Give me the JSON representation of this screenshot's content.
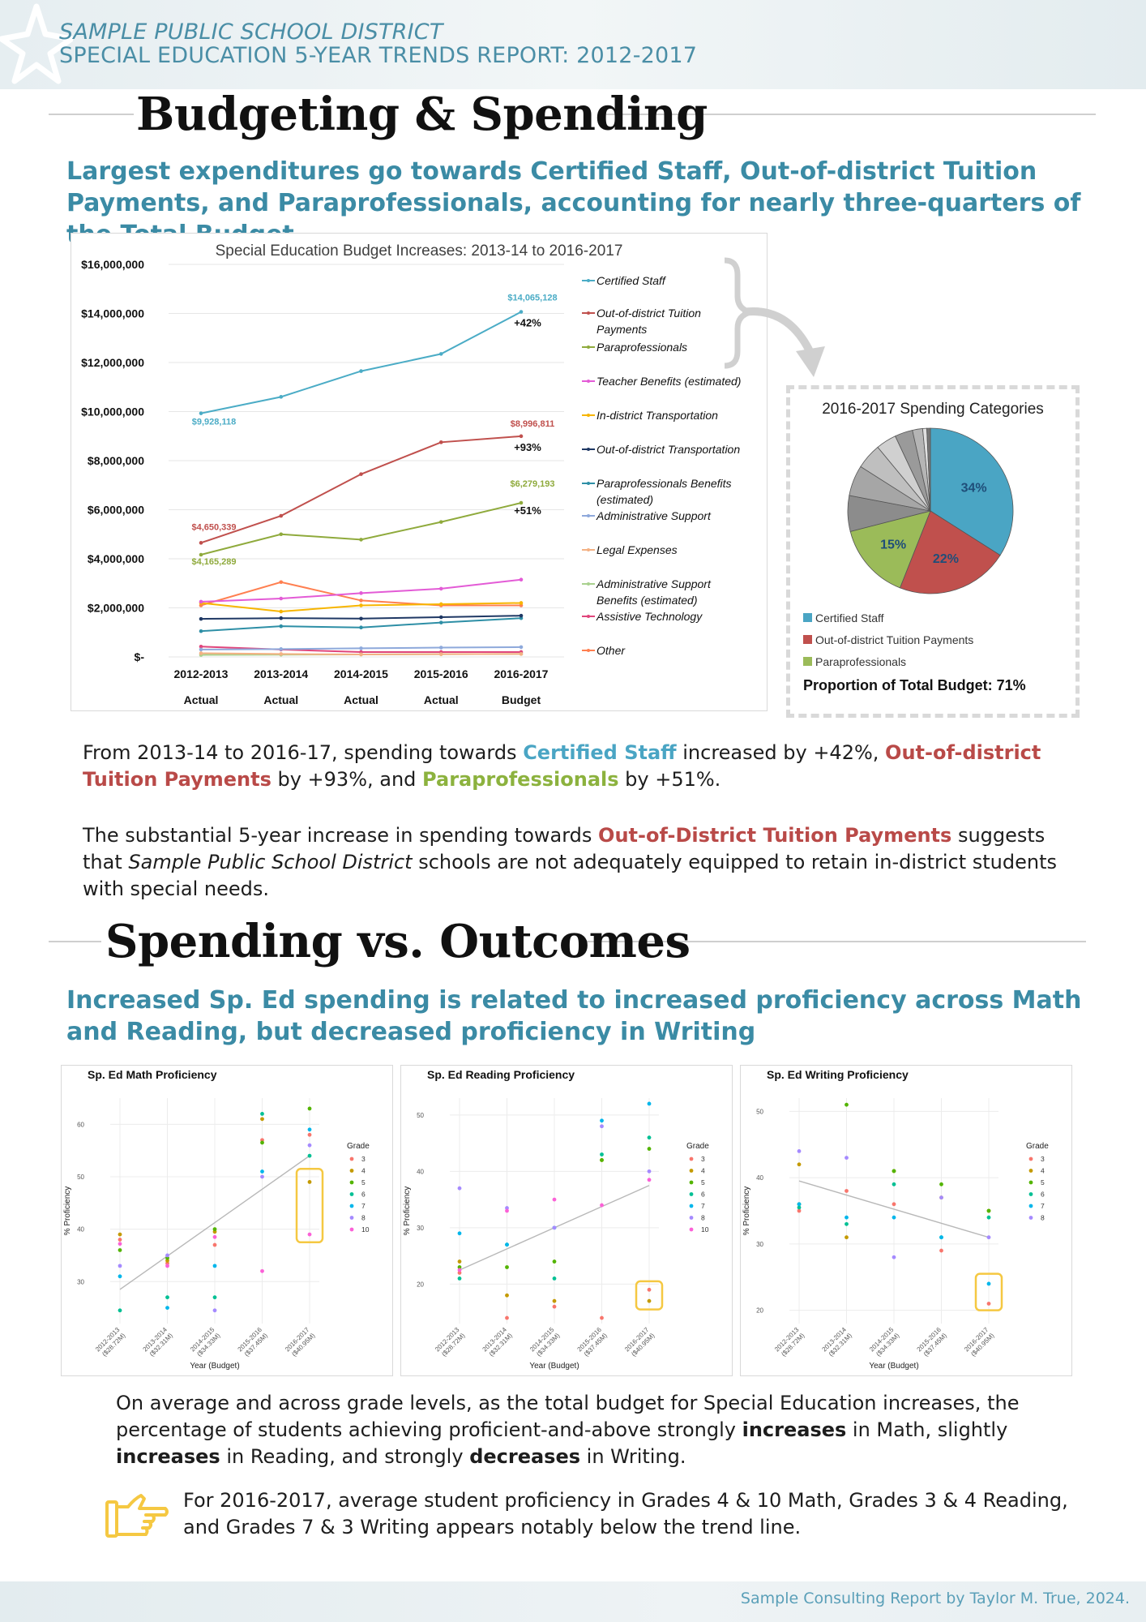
{
  "header": {
    "district": "SAMPLE PUBLIC SCHOOL DISTRICT",
    "report_title": "SPECIAL EDUCATION 5-YEAR TRENDS REPORT: 2012-2017"
  },
  "section1": {
    "title": "Budgeting & Spending",
    "lead": "Largest expenditures go towards Certified Staff, Out-of-district Tuition Payments, and Paraprofessionals, accounting for nearly three-quarters of the Total Budget",
    "p1_a": "From 2013-14 to 2016-17, spending towards ",
    "p1_b": "Certified Staff",
    "p1_c": " increased by +42%, ",
    "p1_d": "Out-of-district Tuition Payments",
    "p1_e": " by +93%, and ",
    "p1_f": "Paraprofessionals",
    "p1_g": " by +51%.",
    "p2_a": "The substantial 5-year increase in spending towards ",
    "p2_b": "Out-of-District Tuition Payments",
    "p2_c": " suggests that ",
    "p2_d": "Sample Public School District",
    "p2_e": " schools are not adequately equipped to retain in-district students with special needs."
  },
  "section2": {
    "title": "Spending vs. Outcomes",
    "lead": "Increased Sp. Ed spending is related to increased proficiency across Math and Reading, but decreased proficiency in Writing",
    "p1_a": "On average and across grade levels, as the total budget for Special Education increases, the percentage of students achieving proficient-and-above strongly ",
    "p1_b": "increases",
    "p1_c": " in Math, slightly ",
    "p1_d": "increases",
    "p1_e": " in Reading, and strongly ",
    "p1_f": "decreases",
    "p1_g": " in Writing.",
    "note": "For 2016-2017, average student proficiency in Grades 4 & 10 Math, Grades 3 & 4 Reading, and Grades 7 & 3 Writing appears notably below the trend line."
  },
  "footer": "Sample Consulting Report by Taylor M. True, 2024.",
  "colors": {
    "accent": "#3b8ba5",
    "certified_staff": "#4aa5c4",
    "out_of_district": "#b94a48",
    "paraprofessionals": "#8cb23e",
    "highlight_box": "#f5c842"
  },
  "icons": {
    "note": "pointing-hand-icon"
  },
  "chart_data": [
    {
      "type": "line",
      "title": "Special Education Budget Increases: 2013-14 to 2016-2017",
      "categories": [
        "2012-2013",
        "2013-2014",
        "2014-2015",
        "2015-2016",
        "2016-2017"
      ],
      "category_sublabels": [
        "Actual",
        "Actual",
        "Actual",
        "Actual",
        "Budget"
      ],
      "yticks": [
        "$16,000,000",
        "$14,000,000",
        "$12,000,000",
        "$10,000,000",
        "$8,000,000",
        "$6,000,000",
        "$4,000,000",
        "$2,000,000",
        "$-"
      ],
      "ylim": [
        0,
        16000000
      ],
      "legend_position": "right",
      "series": [
        {
          "name": "Certified Staff",
          "color": "#4bacc6",
          "values": [
            9928118,
            10600000,
            11650000,
            12350000,
            14065128
          ]
        },
        {
          "name": "Out-of-district Tuition Payments",
          "color": "#c0504d",
          "values": [
            4650339,
            5750000,
            7450000,
            8750000,
            8996811
          ]
        },
        {
          "name": "Paraprofessionals",
          "color": "#8faa3c",
          "values": [
            4165289,
            5000000,
            4780000,
            5500000,
            6279193
          ]
        },
        {
          "name": "Teacher Benefits (estimated)",
          "color": "#e35bd6",
          "values": [
            2250000,
            2380000,
            2600000,
            2780000,
            3150000
          ]
        },
        {
          "name": "In-district Transportation",
          "color": "#f7b500",
          "values": [
            2200000,
            1850000,
            2100000,
            2150000,
            2200000
          ]
        },
        {
          "name": "Out-of-district Transportation",
          "color": "#1f3864",
          "values": [
            1550000,
            1580000,
            1560000,
            1620000,
            1680000
          ]
        },
        {
          "name": "Paraprofessionals Benefits (estimated)",
          "color": "#2e8fa6",
          "values": [
            1050000,
            1250000,
            1200000,
            1400000,
            1580000
          ]
        },
        {
          "name": "Administrative Support",
          "color": "#8ea9db",
          "values": [
            300000,
            320000,
            350000,
            380000,
            400000
          ]
        },
        {
          "name": "Legal Expenses",
          "color": "#f4b183",
          "values": [
            150000,
            120000,
            100000,
            110000,
            120000
          ]
        },
        {
          "name": "Administrative Support Benefits (estimated)",
          "color": "#a9d18e",
          "values": [
            80000,
            90000,
            100000,
            110000,
            120000
          ]
        },
        {
          "name": "Assistive Technology",
          "color": "#e0457b",
          "values": [
            420000,
            300000,
            200000,
            200000,
            200000
          ]
        },
        {
          "name": "Other",
          "color": "#ff7f50",
          "values": [
            2100000,
            3050000,
            2300000,
            2100000,
            2100000
          ]
        }
      ],
      "data_labels": [
        {
          "series": "Certified Staff",
          "first": "$9,928,118",
          "last": "$14,065,128",
          "change": "+42%"
        },
        {
          "series": "Out-of-district Tuition Payments",
          "first": "$4,650,339",
          "last": "$8,996,811",
          "change": "+93%"
        },
        {
          "series": "Paraprofessionals",
          "first": "$4,165,289",
          "last": "$6,279,193",
          "change": "+51%"
        }
      ]
    },
    {
      "type": "pie",
      "title": "2016-2017 Spending Categories",
      "slices": [
        {
          "label": "Certified Staff",
          "value": 34,
          "color": "#4aa5c4",
          "text": "34%"
        },
        {
          "label": "Out-of-district Tuition Payments",
          "value": 22,
          "color": "#c0504d",
          "text": "22%"
        },
        {
          "label": "Paraprofessionals",
          "value": 15,
          "color": "#9bbb59",
          "text": "15%"
        },
        {
          "label": "",
          "value": 7,
          "color": "#8c8c8c",
          "text": ""
        },
        {
          "label": "",
          "value": 6,
          "color": "#a6a6a6",
          "text": ""
        },
        {
          "label": "",
          "value": 5,
          "color": "#bfbfbf",
          "text": ""
        },
        {
          "label": "",
          "value": 4,
          "color": "#d0d0d0",
          "text": ""
        },
        {
          "label": "",
          "value": 3.5,
          "color": "#9a9a9a",
          "text": ""
        },
        {
          "label": "",
          "value": 2,
          "color": "#b5b5b5",
          "text": ""
        },
        {
          "label": "",
          "value": 0.8,
          "color": "#e0e0e0",
          "text": ""
        },
        {
          "label": "",
          "value": 0.7,
          "color": "#777777",
          "text": ""
        }
      ],
      "legend": [
        "Certified Staff",
        "Out-of-district Tuition Payments",
        "Paraprofessionals"
      ],
      "footnote": "Proportion of Total Budget: 71%"
    },
    {
      "type": "scatter",
      "title": "Sp. Ed Math Proficiency",
      "xlabel": "Year (Budget)",
      "ylabel": "% Proficiency",
      "categories": [
        "2012-2013 ($28.72M)",
        "2013-2014 ($32.31M)",
        "2014-2015 ($34.33M)",
        "2015-2016 ($37.45M)",
        "2016-2017 ($40.95M)"
      ],
      "yticks": [
        30,
        40,
        50,
        60
      ],
      "ylim": [
        22,
        65
      ],
      "legend_title": "Grade",
      "grades": [
        "3",
        "4",
        "5",
        "6",
        "7",
        "8",
        "10"
      ],
      "trend": [
        28.5,
        54
      ],
      "highlight": {
        "x": 4,
        "y0": 37.5,
        "y1": 51.5
      },
      "points": [
        {
          "x": 0,
          "y": 38,
          "g": "3"
        },
        {
          "x": 0,
          "y": 39,
          "g": "4"
        },
        {
          "x": 0,
          "y": 36,
          "g": "5"
        },
        {
          "x": 0,
          "y": 24.5,
          "g": "6"
        },
        {
          "x": 0,
          "y": 31,
          "g": "7"
        },
        {
          "x": 0,
          "y": 33,
          "g": "8"
        },
        {
          "x": 0,
          "y": 37.2,
          "g": "10"
        },
        {
          "x": 1,
          "y": 33.5,
          "g": "3"
        },
        {
          "x": 1,
          "y": 34,
          "g": "4"
        },
        {
          "x": 1,
          "y": 34.5,
          "g": "5"
        },
        {
          "x": 1,
          "y": 27,
          "g": "6"
        },
        {
          "x": 1,
          "y": 25,
          "g": "7"
        },
        {
          "x": 1,
          "y": 35,
          "g": "8"
        },
        {
          "x": 1,
          "y": 33,
          "g": "10"
        },
        {
          "x": 2,
          "y": 37,
          "g": "3"
        },
        {
          "x": 2,
          "y": 39.5,
          "g": "4"
        },
        {
          "x": 2,
          "y": 40,
          "g": "5"
        },
        {
          "x": 2,
          "y": 27,
          "g": "6"
        },
        {
          "x": 2,
          "y": 33,
          "g": "7"
        },
        {
          "x": 2,
          "y": 24.5,
          "g": "8"
        },
        {
          "x": 2,
          "y": 38.5,
          "g": "10"
        },
        {
          "x": 3,
          "y": 57,
          "g": "3"
        },
        {
          "x": 3,
          "y": 61,
          "g": "4"
        },
        {
          "x": 3,
          "y": 56.5,
          "g": "5"
        },
        {
          "x": 3,
          "y": 62,
          "g": "6"
        },
        {
          "x": 3,
          "y": 51,
          "g": "7"
        },
        {
          "x": 3,
          "y": 50,
          "g": "8"
        },
        {
          "x": 3,
          "y": 32,
          "g": "10"
        },
        {
          "x": 4,
          "y": 58,
          "g": "3"
        },
        {
          "x": 4,
          "y": 49,
          "g": "4"
        },
        {
          "x": 4,
          "y": 63,
          "g": "5"
        },
        {
          "x": 4,
          "y": 54,
          "g": "6"
        },
        {
          "x": 4,
          "y": 59,
          "g": "7"
        },
        {
          "x": 4,
          "y": 56,
          "g": "8"
        },
        {
          "x": 4,
          "y": 39,
          "g": "10"
        }
      ]
    },
    {
      "type": "scatter",
      "title": "Sp. Ed Reading Proficiency",
      "xlabel": "Year (Budget)",
      "ylabel": "% Proficiency",
      "categories": [
        "2012-2013 ($28.72M)",
        "2013-2014 ($32.31M)",
        "2014-2015 ($34.33M)",
        "2015-2016 ($37.45M)",
        "2016-2017 ($40.95M)"
      ],
      "yticks": [
        20,
        30,
        40,
        50
      ],
      "ylim": [
        13,
        53
      ],
      "legend_title": "Grade",
      "grades": [
        "3",
        "4",
        "5",
        "6",
        "7",
        "8",
        "10"
      ],
      "trend": [
        22.5,
        37.5
      ],
      "highlight": {
        "x": 4,
        "y0": 15.5,
        "y1": 20.5
      },
      "points": [
        {
          "x": 0,
          "y": 22,
          "g": "3"
        },
        {
          "x": 0,
          "y": 24,
          "g": "4"
        },
        {
          "x": 0,
          "y": 23,
          "g": "5"
        },
        {
          "x": 0,
          "y": 21,
          "g": "6"
        },
        {
          "x": 0,
          "y": 29,
          "g": "7"
        },
        {
          "x": 0,
          "y": 37,
          "g": "8"
        },
        {
          "x": 0,
          "y": 22.5,
          "g": "10"
        },
        {
          "x": 1,
          "y": 14,
          "g": "3"
        },
        {
          "x": 1,
          "y": 18,
          "g": "4"
        },
        {
          "x": 1,
          "y": 23,
          "g": "5"
        },
        {
          "x": 1,
          "y": 27,
          "g": "6"
        },
        {
          "x": 1,
          "y": 27,
          "g": "7"
        },
        {
          "x": 1,
          "y": 33.5,
          "g": "8"
        },
        {
          "x": 1,
          "y": 33,
          "g": "10"
        },
        {
          "x": 2,
          "y": 16,
          "g": "3"
        },
        {
          "x": 2,
          "y": 17,
          "g": "4"
        },
        {
          "x": 2,
          "y": 24,
          "g": "5"
        },
        {
          "x": 2,
          "y": 21,
          "g": "6"
        },
        {
          "x": 2,
          "y": 30,
          "g": "7"
        },
        {
          "x": 2,
          "y": 30,
          "g": "8"
        },
        {
          "x": 2,
          "y": 35,
          "g": "10"
        },
        {
          "x": 3,
          "y": 14,
          "g": "3"
        },
        {
          "x": 3,
          "y": 42,
          "g": "4"
        },
        {
          "x": 3,
          "y": 42,
          "g": "5"
        },
        {
          "x": 3,
          "y": 43,
          "g": "6"
        },
        {
          "x": 3,
          "y": 49,
          "g": "7"
        },
        {
          "x": 3,
          "y": 48,
          "g": "8"
        },
        {
          "x": 3,
          "y": 34,
          "g": "10"
        },
        {
          "x": 4,
          "y": 19,
          "g": "3"
        },
        {
          "x": 4,
          "y": 17,
          "g": "4"
        },
        {
          "x": 4,
          "y": 44,
          "g": "5"
        },
        {
          "x": 4,
          "y": 46,
          "g": "6"
        },
        {
          "x": 4,
          "y": 52,
          "g": "7"
        },
        {
          "x": 4,
          "y": 40,
          "g": "8"
        },
        {
          "x": 4,
          "y": 38.5,
          "g": "10"
        }
      ]
    },
    {
      "type": "scatter",
      "title": "Sp. Ed Writing Proficiency",
      "xlabel": "Year (Budget)",
      "ylabel": "% Proficiency",
      "categories": [
        "2012-2013 ($28.72M)",
        "2013-2014 ($32.31M)",
        "2014-2015 ($34.33M)",
        "2015-2016 ($37.45M)",
        "2016-2017 ($40.95M)"
      ],
      "yticks": [
        20,
        30,
        40,
        50
      ],
      "ylim": [
        18,
        52
      ],
      "legend_title": "Grade",
      "grades": [
        "3",
        "4",
        "5",
        "6",
        "7",
        "8"
      ],
      "trend": [
        39.5,
        31
      ],
      "highlight": {
        "x": 4,
        "y0": 20,
        "y1": 25.5
      },
      "points": [
        {
          "x": 0,
          "y": 35,
          "g": "3"
        },
        {
          "x": 0,
          "y": 42,
          "g": "4"
        },
        {
          "x": 0,
          "y": 36,
          "g": "5"
        },
        {
          "x": 0,
          "y": 35.5,
          "g": "6"
        },
        {
          "x": 0,
          "y": 36,
          "g": "7"
        },
        {
          "x": 0,
          "y": 44,
          "g": "8"
        },
        {
          "x": 1,
          "y": 38,
          "g": "3"
        },
        {
          "x": 1,
          "y": 31,
          "g": "4"
        },
        {
          "x": 1,
          "y": 51,
          "g": "5"
        },
        {
          "x": 1,
          "y": 33,
          "g": "6"
        },
        {
          "x": 1,
          "y": 34,
          "g": "7"
        },
        {
          "x": 1,
          "y": 43,
          "g": "8"
        },
        {
          "x": 2,
          "y": 36,
          "g": "3"
        },
        {
          "x": 2,
          "y": 41,
          "g": "4"
        },
        {
          "x": 2,
          "y": 41,
          "g": "5"
        },
        {
          "x": 2,
          "y": 39,
          "g": "6"
        },
        {
          "x": 2,
          "y": 34,
          "g": "7"
        },
        {
          "x": 2,
          "y": 28,
          "g": "8"
        },
        {
          "x": 3,
          "y": 29,
          "g": "3"
        },
        {
          "x": 3,
          "y": 37,
          "g": "4"
        },
        {
          "x": 3,
          "y": 39,
          "g": "5"
        },
        {
          "x": 3,
          "y": 31,
          "g": "6"
        },
        {
          "x": 3,
          "y": 31,
          "g": "7"
        },
        {
          "x": 3,
          "y": 37,
          "g": "8"
        },
        {
          "x": 4,
          "y": 21,
          "g": "3"
        },
        {
          "x": 4,
          "y": 35,
          "g": "4"
        },
        {
          "x": 4,
          "y": 35,
          "g": "5"
        },
        {
          "x": 4,
          "y": 34,
          "g": "6"
        },
        {
          "x": 4,
          "y": 24,
          "g": "7"
        },
        {
          "x": 4,
          "y": 31,
          "g": "8"
        }
      ]
    }
  ]
}
